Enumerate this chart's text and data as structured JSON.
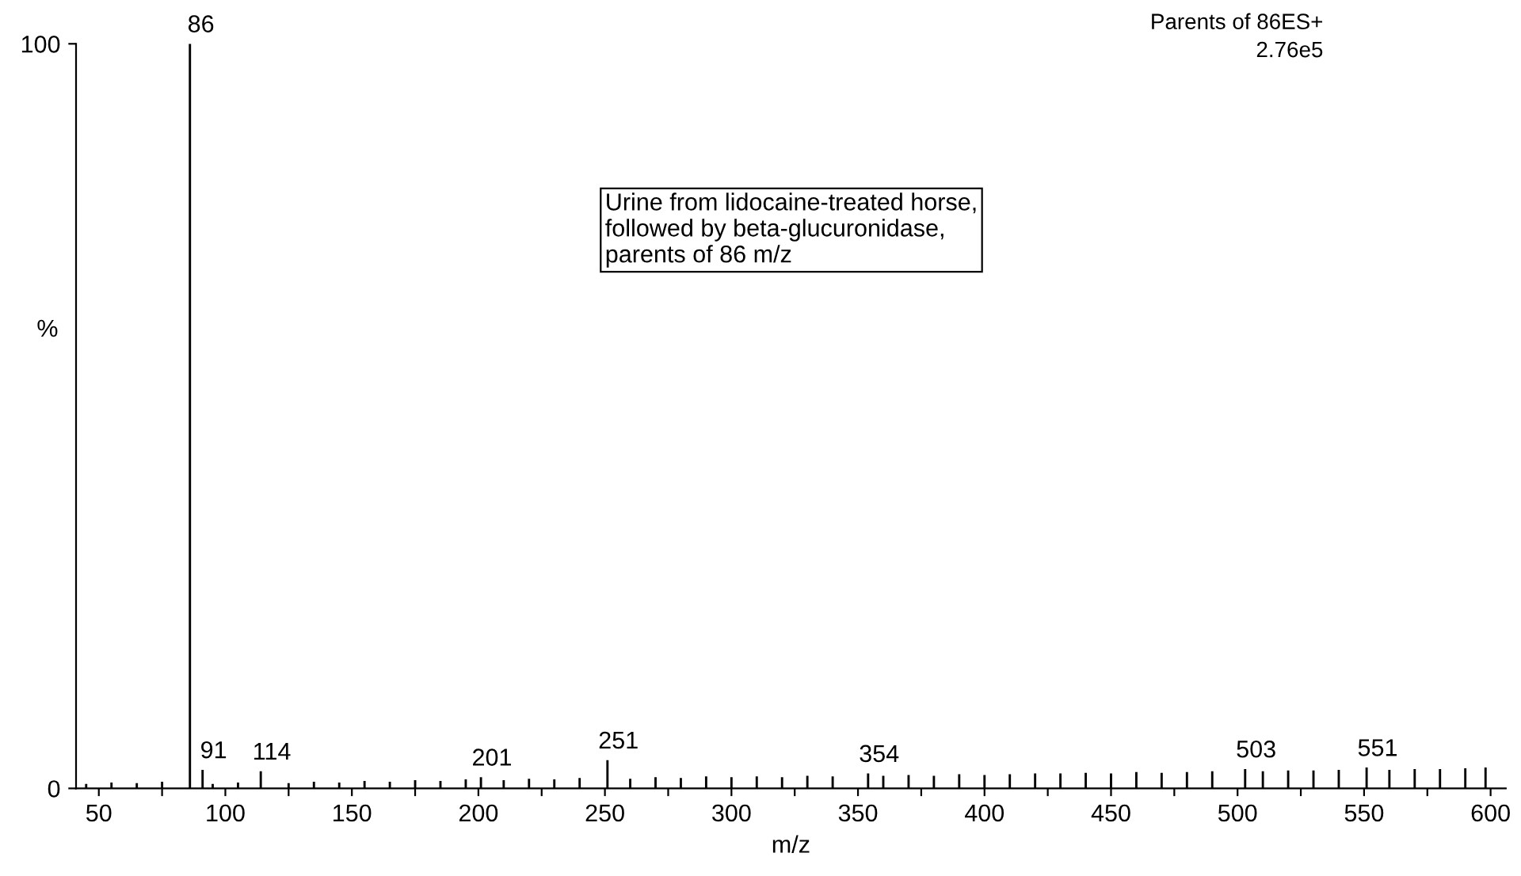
{
  "chart_data": {
    "type": "bar",
    "xlabel": "m/z",
    "ylabel": "%",
    "color": "#000000",
    "x": [
      45,
      55,
      65,
      75,
      86,
      91,
      95,
      105,
      114,
      125,
      135,
      145,
      155,
      165,
      175,
      185,
      195,
      201,
      210,
      220,
      230,
      240,
      251,
      260,
      270,
      280,
      290,
      300,
      310,
      320,
      330,
      340,
      354,
      360,
      370,
      380,
      390,
      400,
      410,
      420,
      430,
      440,
      450,
      460,
      470,
      480,
      490,
      503,
      510,
      520,
      530,
      540,
      551,
      560,
      570,
      580,
      590,
      598
    ],
    "values": [
      0.6,
      0.8,
      0.7,
      0.9,
      100,
      2.5,
      0.6,
      0.8,
      2.3,
      0.7,
      0.9,
      0.8,
      1.0,
      0.9,
      1.1,
      1.0,
      1.2,
      1.5,
      1.1,
      1.3,
      1.2,
      1.4,
      3.8,
      1.3,
      1.5,
      1.4,
      1.6,
      1.5,
      1.6,
      1.5,
      1.7,
      1.6,
      2.0,
      1.7,
      1.8,
      1.7,
      1.9,
      1.8,
      1.9,
      2.0,
      2.0,
      2.1,
      2.0,
      2.2,
      2.1,
      2.2,
      2.3,
      2.6,
      2.3,
      2.4,
      2.4,
      2.5,
      2.8,
      2.5,
      2.6,
      2.6,
      2.7,
      2.8
    ],
    "xlim": [
      41,
      606
    ],
    "ylim": [
      0,
      100
    ],
    "xticks": [
      50,
      {
        "value": 75,
        "label": null
      },
      100,
      {
        "value": 125,
        "label": null
      },
      150,
      {
        "value": 175,
        "label": null
      },
      200,
      {
        "value": 225,
        "label": null
      },
      250,
      {
        "value": 275,
        "label": null
      },
      300,
      {
        "value": 325,
        "label": null
      },
      350,
      {
        "value": 375,
        "label": null
      },
      400,
      {
        "value": 425,
        "label": null
      },
      450,
      {
        "value": 475,
        "label": null
      },
      500,
      {
        "value": 525,
        "label": null
      },
      550,
      {
        "value": 575,
        "label": null
      },
      600
    ],
    "yticks": [
      0,
      100
    ],
    "grid": false,
    "legend": false,
    "annotations": [
      {
        "text": "86",
        "x": 86,
        "y": 100
      },
      {
        "text": "91",
        "x": 91,
        "y": 2.5
      },
      {
        "text": "114",
        "x": 114,
        "y": 2.3
      },
      {
        "text": "201",
        "x": 201,
        "y": 1.5
      },
      {
        "text": "251",
        "x": 251,
        "y": 3.8
      },
      {
        "text": "354",
        "x": 354,
        "y": 2.0
      },
      {
        "text": "503",
        "x": 503,
        "y": 2.6
      },
      {
        "text": "551",
        "x": 551,
        "y": 2.8
      },
      "Parents of 86ES+",
      "2.76e5",
      "Urine from lidocaine-treated horse,\nfollowed by beta-glucuronidase,\nparents of 86 m/z"
    ]
  }
}
